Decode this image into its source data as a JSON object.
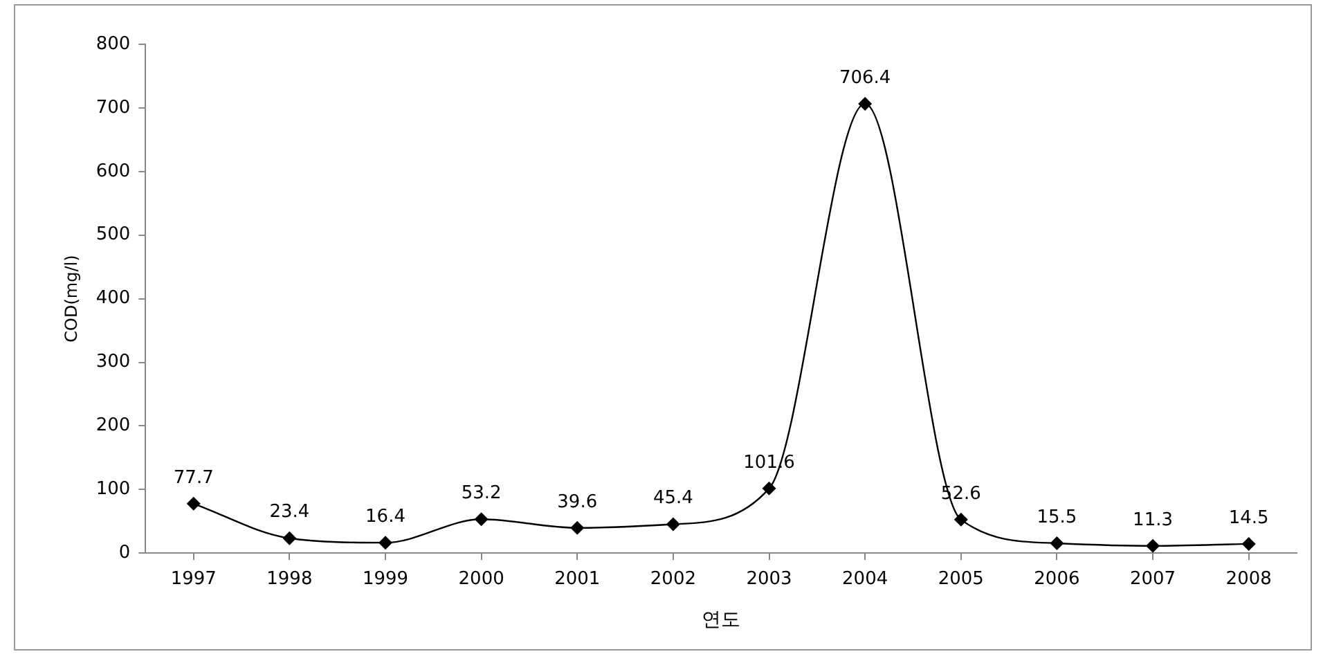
{
  "chart_data": {
    "type": "line",
    "xlabel": "연도",
    "ylabel": "COD(mg/l)",
    "categories": [
      "1997",
      "1998",
      "1999",
      "2000",
      "2001",
      "2002",
      "2003",
      "2004",
      "2005",
      "2006",
      "2007",
      "2008"
    ],
    "values": [
      77.7,
      23.4,
      16.4,
      53.2,
      39.6,
      45.4,
      101.6,
      706.4,
      52.6,
      15.5,
      11.3,
      14.5
    ],
    "color": "#000000",
    "marker": "diamond",
    "data_labels": true,
    "ylim": [
      0,
      800
    ],
    "yticks": [
      0,
      100,
      200,
      300,
      400,
      500,
      600,
      700,
      800
    ]
  }
}
